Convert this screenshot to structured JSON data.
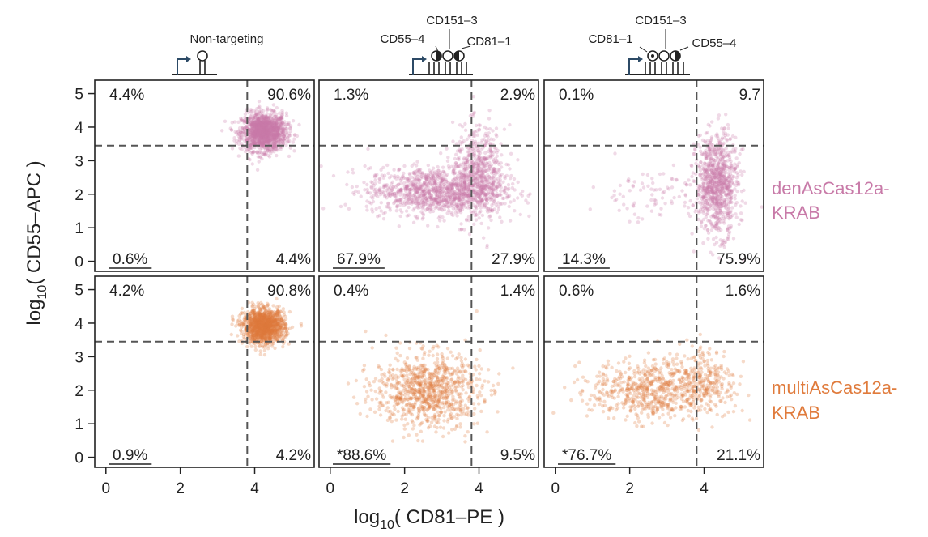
{
  "chart_data": {
    "type": "scatter",
    "xlabel_parts": [
      "log",
      "10",
      "( CD81–PE )"
    ],
    "ylabel_parts": [
      "log",
      "10",
      "( CD55–APC )"
    ],
    "xlim": [
      -0.3,
      5.6
    ],
    "ylim": [
      -0.3,
      5.4
    ],
    "x_ticks": [
      "0",
      "2",
      "4"
    ],
    "x_tick_values": [
      0,
      2,
      4
    ],
    "y_ticks": [
      "0",
      "1",
      "2",
      "3",
      "4",
      "5"
    ],
    "y_tick_values": [
      0,
      1,
      2,
      3,
      4,
      5
    ],
    "gate_x": 3.8,
    "gate_y": 3.45,
    "columns": [
      {
        "title": "Non-targeting",
        "guides": []
      },
      {
        "title": "",
        "guides": [
          "CD55–4",
          "CD151–3",
          "CD81–1"
        ]
      },
      {
        "title": "",
        "guides": [
          "CD81–1",
          "CD151–3",
          "CD55–4"
        ]
      }
    ],
    "rows": [
      {
        "name_lines": [
          "denAsCas12a-",
          "KRAB"
        ],
        "color": "#c87aa8"
      },
      {
        "name_lines": [
          "multiAsCas12a-",
          "KRAB"
        ],
        "color": "#e07b3c"
      }
    ],
    "panels": [
      {
        "row": 0,
        "col": 0,
        "quadrants": {
          "top_left": "4.4%",
          "top_right": "90.6%",
          "bottom_left": "0.6%",
          "bottom_right": "4.4%"
        },
        "clusters": [
          {
            "cx": 4.25,
            "cy": 3.85,
            "sx": 0.3,
            "sy": 0.28,
            "n": 1400
          }
        ]
      },
      {
        "row": 0,
        "col": 1,
        "quadrants": {
          "top_left": "1.3%",
          "top_right": "2.9%",
          "bottom_left": "67.9%",
          "bottom_right": "27.9%"
        },
        "clusters": [
          {
            "cx": 2.8,
            "cy": 2.1,
            "sx": 0.9,
            "sy": 0.35,
            "n": 1100
          },
          {
            "cx": 4.0,
            "cy": 2.6,
            "sx": 0.35,
            "sy": 0.7,
            "n": 600
          }
        ]
      },
      {
        "row": 0,
        "col": 2,
        "quadrants": {
          "top_left": "0.1%",
          "top_right": "9.7",
          "bottom_left": "14.3%",
          "bottom_right": "75.9%"
        },
        "clusters": [
          {
            "cx": 4.35,
            "cy": 2.3,
            "sx": 0.28,
            "sy": 0.75,
            "n": 900
          },
          {
            "cx": 2.6,
            "cy": 2.0,
            "sx": 0.8,
            "sy": 0.4,
            "n": 90
          }
        ]
      },
      {
        "row": 1,
        "col": 0,
        "quadrants": {
          "top_left": "4.2%",
          "top_right": "90.8%",
          "bottom_left": "0.9%",
          "bottom_right": "4.2%"
        },
        "clusters": [
          {
            "cx": 4.25,
            "cy": 3.9,
            "sx": 0.28,
            "sy": 0.25,
            "n": 1300
          }
        ]
      },
      {
        "row": 1,
        "col": 1,
        "quadrants": {
          "top_left": "0.4%",
          "top_right": "1.4%",
          "bottom_left": "*88.6%",
          "bottom_right": "9.5%"
        },
        "clusters": [
          {
            "cx": 2.6,
            "cy": 2.0,
            "sx": 0.7,
            "sy": 0.55,
            "n": 900
          }
        ]
      },
      {
        "row": 1,
        "col": 2,
        "quadrants": {
          "top_left": "0.6%",
          "top_right": "1.6%",
          "bottom_left": "*76.7%",
          "bottom_right": "21.1%"
        },
        "clusters": [
          {
            "cx": 2.6,
            "cy": 2.0,
            "sx": 0.8,
            "sy": 0.45,
            "n": 650
          },
          {
            "cx": 4.1,
            "cy": 2.3,
            "sx": 0.4,
            "sy": 0.55,
            "n": 220
          }
        ]
      }
    ]
  }
}
